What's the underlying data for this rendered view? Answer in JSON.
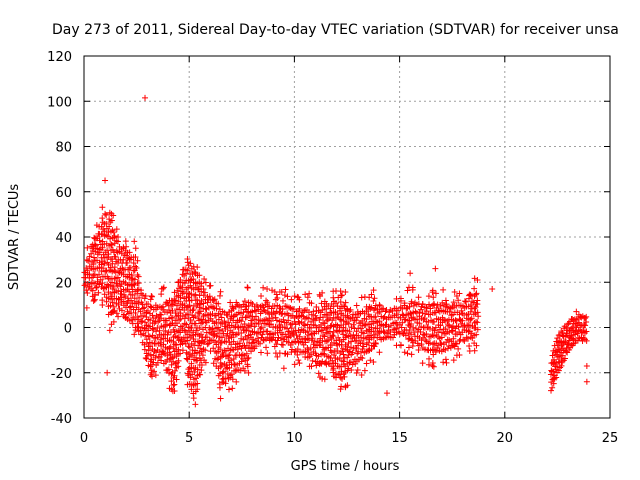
{
  "chart_data": {
    "type": "scatter",
    "title": "Day 273 of 2011, Sidereal Day-to-day VTEC variation (SDTVAR) for receiver unsa",
    "xlabel": "GPS time / hours",
    "ylabel": "SDTVAR / TECUs",
    "xlim": [
      0,
      25
    ],
    "ylim": [
      -40,
      120
    ],
    "xticks": [
      "0",
      "5",
      "10",
      "15",
      "20",
      "25"
    ],
    "yticks": [
      "-40",
      "-20",
      "0",
      "20",
      "40",
      "60",
      "80",
      "100",
      "120"
    ],
    "grid": true,
    "marker": "+",
    "color": "#ff0000",
    "envelope_x": [
      0.0,
      0.25,
      0.5,
      0.75,
      1.0,
      1.2,
      1.5,
      1.75,
      2.0,
      2.25,
      2.5,
      2.75,
      3.0,
      3.25,
      3.5,
      3.75,
      4.0,
      4.25,
      4.5,
      4.75,
      5.0,
      5.25,
      5.5,
      5.75,
      6.0,
      6.25,
      6.5,
      6.75,
      7.0,
      7.5,
      8.0,
      8.5,
      9.0,
      9.5,
      10.0,
      10.5,
      11.0,
      11.5,
      12.0,
      12.5,
      13.0,
      13.5,
      14.0,
      14.5,
      15.0,
      15.5,
      16.0,
      16.5,
      17.0,
      17.5,
      18.0,
      18.5,
      18.8
    ],
    "envelope_upper": [
      25,
      30,
      35,
      42,
      50,
      48,
      38,
      36,
      34,
      32,
      30,
      14,
      10,
      8,
      8,
      10,
      10,
      10,
      20,
      25,
      28,
      25,
      20,
      15,
      12,
      12,
      8,
      5,
      8,
      10,
      10,
      10,
      9,
      9,
      8,
      7,
      6,
      9,
      10,
      8,
      5,
      8,
      9,
      7,
      8,
      10,
      10,
      9,
      10,
      9,
      10,
      15,
      12
    ],
    "envelope_lower": [
      15,
      18,
      20,
      20,
      15,
      5,
      10,
      8,
      5,
      3,
      0,
      -5,
      -15,
      -20,
      -15,
      -10,
      -20,
      -25,
      -15,
      -5,
      -25,
      -30,
      -20,
      -10,
      -5,
      -15,
      -25,
      -25,
      -20,
      -18,
      -10,
      -5,
      -5,
      -5,
      -10,
      -10,
      -15,
      -15,
      -20,
      -20,
      -15,
      -10,
      -5,
      -5,
      -2,
      -5,
      -8,
      -10,
      -10,
      -8,
      -5,
      -5,
      0
    ],
    "late_envelope_x": [
      22.2,
      22.5,
      23.0,
      23.5,
      23.9
    ],
    "late_envelope_upper": [
      -15,
      -5,
      2,
      5,
      5
    ],
    "late_envelope_lower": [
      -28,
      -20,
      -10,
      -5,
      -5
    ],
    "outliers": [
      {
        "x": 2.9,
        "y": 101.5
      },
      {
        "x": 1.0,
        "y": 65
      },
      {
        "x": 1.1,
        "y": -20
      },
      {
        "x": 14.4,
        "y": -29
      },
      {
        "x": 15.5,
        "y": 24
      },
      {
        "x": 16.7,
        "y": 26
      },
      {
        "x": 9.5,
        "y": -18
      },
      {
        "x": 10.7,
        "y": 15
      },
      {
        "x": 19.4,
        "y": 17
      },
      {
        "x": 18.7,
        "y": 21
      },
      {
        "x": 23.9,
        "y": -24
      },
      {
        "x": 23.9,
        "y": -17
      },
      {
        "x": 23.4,
        "y": 7
      },
      {
        "x": 8.7,
        "y": 17
      },
      {
        "x": 4.4,
        "y": -23
      }
    ]
  }
}
